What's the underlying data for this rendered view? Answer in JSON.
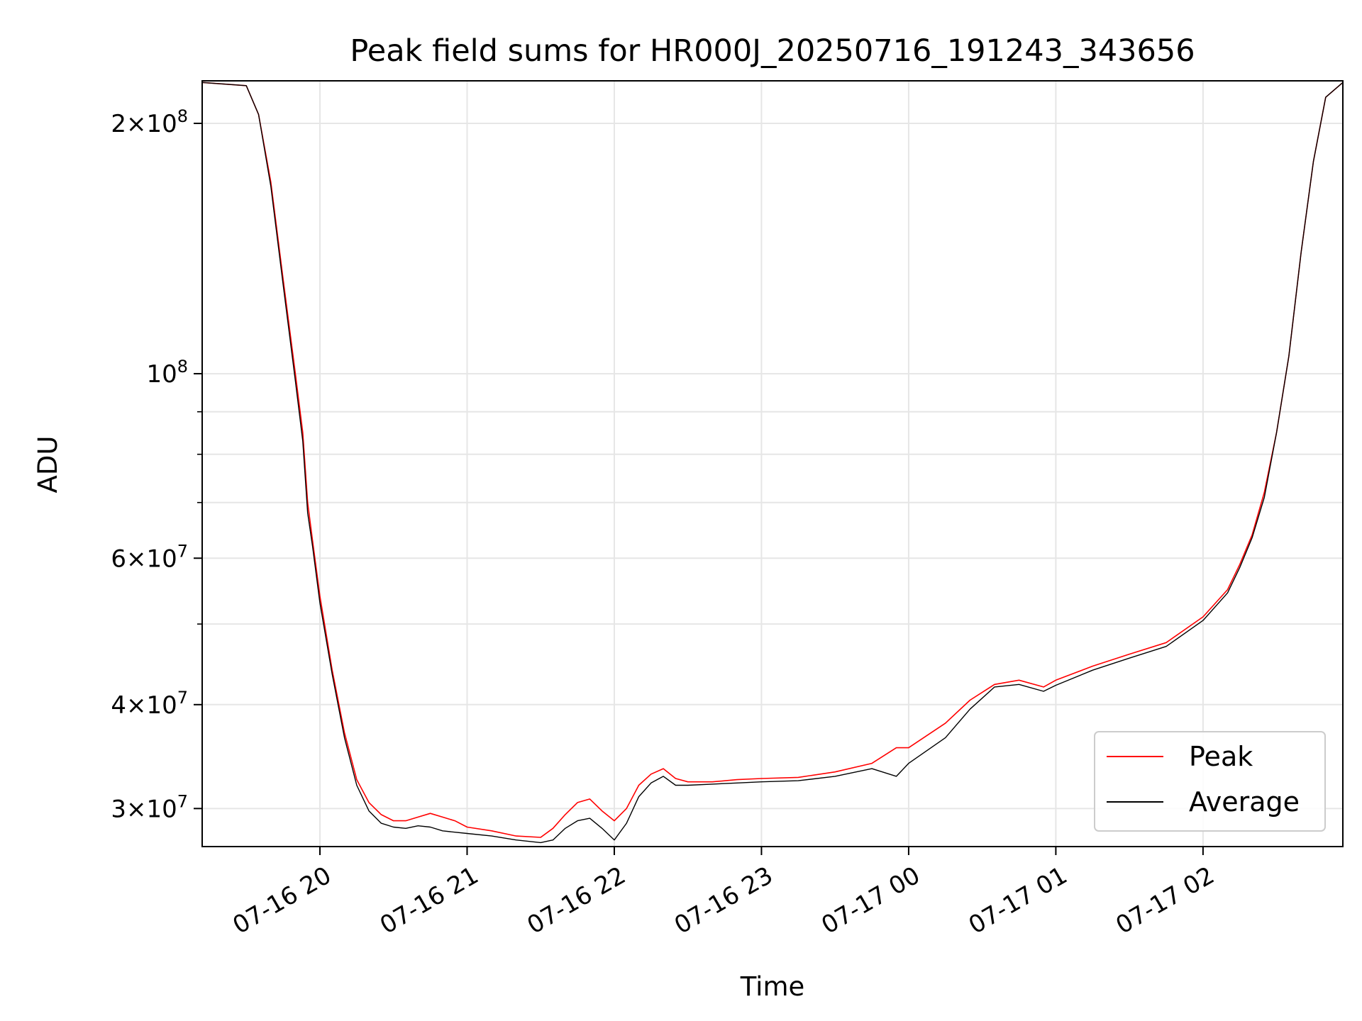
{
  "chart_data": {
    "type": "line",
    "title": "Peak field sums for HR000J_20250716_191243_343656",
    "xlabel": "Time",
    "ylabel": "ADU",
    "yscale": "log",
    "ylim": [
      27000000,
      225000000
    ],
    "xlim": [
      "2025-07-16 19:12",
      "2025-07-17 02:57"
    ],
    "grid": true,
    "legend_position": "lower-right",
    "x_ticks": [
      "2025-07-16 20:00",
      "2025-07-16 21:00",
      "2025-07-16 22:00",
      "2025-07-16 23:00",
      "2025-07-17 00:00",
      "2025-07-17 01:00",
      "2025-07-17 02:00"
    ],
    "x_tick_labels": [
      "07-16 20",
      "07-16 21",
      "07-16 22",
      "07-16 23",
      "07-17 00",
      "07-17 01",
      "07-17 02"
    ],
    "y_major_ticks": [
      {
        "value": 30000000,
        "mantissa": "3",
        "exp": "7"
      },
      {
        "value": 40000000,
        "mantissa": "4",
        "exp": "7"
      },
      {
        "value": 60000000,
        "mantissa": "6",
        "exp": "7"
      },
      {
        "value": 100000000,
        "mantissa": "",
        "exp": "8"
      },
      {
        "value": 200000000,
        "mantissa": "2",
        "exp": "8"
      }
    ],
    "y_minor_ticks": [
      50000000,
      70000000,
      80000000,
      90000000
    ],
    "series": [
      {
        "name": "Peak",
        "color": "#ff0000",
        "x": [
          "2025-07-16 19:12",
          "2025-07-16 19:30",
          "2025-07-16 19:35",
          "2025-07-16 19:40",
          "2025-07-16 19:45",
          "2025-07-16 19:50",
          "2025-07-16 19:53",
          "2025-07-16 19:55",
          "2025-07-16 19:57",
          "2025-07-16 20:00",
          "2025-07-16 20:05",
          "2025-07-16 20:10",
          "2025-07-16 20:15",
          "2025-07-16 20:20",
          "2025-07-16 20:25",
          "2025-07-16 20:30",
          "2025-07-16 20:35",
          "2025-07-16 20:40",
          "2025-07-16 20:45",
          "2025-07-16 20:50",
          "2025-07-16 20:55",
          "2025-07-16 21:00",
          "2025-07-16 21:10",
          "2025-07-16 21:20",
          "2025-07-16 21:30",
          "2025-07-16 21:35",
          "2025-07-16 21:40",
          "2025-07-16 21:45",
          "2025-07-16 21:50",
          "2025-07-16 21:55",
          "2025-07-16 22:00",
          "2025-07-16 22:05",
          "2025-07-16 22:10",
          "2025-07-16 22:15",
          "2025-07-16 22:20",
          "2025-07-16 22:25",
          "2025-07-16 22:30",
          "2025-07-16 22:40",
          "2025-07-16 22:50",
          "2025-07-16 23:00",
          "2025-07-16 23:15",
          "2025-07-16 23:30",
          "2025-07-16 23:45",
          "2025-07-16 23:55",
          "2025-07-17 00:00",
          "2025-07-17 00:15",
          "2025-07-17 00:25",
          "2025-07-17 00:35",
          "2025-07-17 00:45",
          "2025-07-17 00:55",
          "2025-07-17 01:00",
          "2025-07-17 01:15",
          "2025-07-17 01:30",
          "2025-07-17 01:45",
          "2025-07-17 02:00",
          "2025-07-17 02:10",
          "2025-07-17 02:15",
          "2025-07-17 02:20",
          "2025-07-17 02:25",
          "2025-07-17 02:30",
          "2025-07-17 02:35",
          "2025-07-17 02:40",
          "2025-07-17 02:45",
          "2025-07-17 02:50",
          "2025-07-17 02:57"
        ],
        "y": [
          224000000,
          222000000,
          205000000,
          170000000,
          130000000,
          100000000,
          85000000,
          70000000,
          63000000,
          54000000,
          44000000,
          37000000,
          32500000,
          30500000,
          29500000,
          29000000,
          29000000,
          29300000,
          29600000,
          29300000,
          29000000,
          28500000,
          28200000,
          27800000,
          27700000,
          28400000,
          29500000,
          30500000,
          30800000,
          29800000,
          29000000,
          30000000,
          32000000,
          33000000,
          33500000,
          32600000,
          32300000,
          32300000,
          32500000,
          32600000,
          32700000,
          33200000,
          34000000,
          35500000,
          35500000,
          38000000,
          40500000,
          42300000,
          42800000,
          42000000,
          42800000,
          44500000,
          46000000,
          47500000,
          51000000,
          55000000,
          59000000,
          64000000,
          72000000,
          85000000,
          105000000,
          140000000,
          180000000,
          215000000,
          224000000
        ]
      },
      {
        "name": "Average",
        "color": "#000000",
        "x": [
          "2025-07-16 19:12",
          "2025-07-16 19:30",
          "2025-07-16 19:35",
          "2025-07-16 19:40",
          "2025-07-16 19:45",
          "2025-07-16 19:50",
          "2025-07-16 19:53",
          "2025-07-16 19:55",
          "2025-07-16 19:57",
          "2025-07-16 20:00",
          "2025-07-16 20:05",
          "2025-07-16 20:10",
          "2025-07-16 20:15",
          "2025-07-16 20:20",
          "2025-07-16 20:25",
          "2025-07-16 20:30",
          "2025-07-16 20:35",
          "2025-07-16 20:40",
          "2025-07-16 20:45",
          "2025-07-16 20:50",
          "2025-07-16 20:55",
          "2025-07-16 21:00",
          "2025-07-16 21:10",
          "2025-07-16 21:20",
          "2025-07-16 21:30",
          "2025-07-16 21:35",
          "2025-07-16 21:40",
          "2025-07-16 21:45",
          "2025-07-16 21:50",
          "2025-07-16 21:55",
          "2025-07-16 22:00",
          "2025-07-16 22:05",
          "2025-07-16 22:10",
          "2025-07-16 22:15",
          "2025-07-16 22:20",
          "2025-07-16 22:25",
          "2025-07-16 22:30",
          "2025-07-16 22:40",
          "2025-07-16 22:50",
          "2025-07-16 23:00",
          "2025-07-16 23:15",
          "2025-07-16 23:30",
          "2025-07-16 23:45",
          "2025-07-16 23:55",
          "2025-07-17 00:00",
          "2025-07-17 00:15",
          "2025-07-17 00:25",
          "2025-07-17 00:35",
          "2025-07-17 00:45",
          "2025-07-17 00:55",
          "2025-07-17 01:00",
          "2025-07-17 01:15",
          "2025-07-17 01:30",
          "2025-07-17 01:45",
          "2025-07-17 02:00",
          "2025-07-17 02:10",
          "2025-07-17 02:15",
          "2025-07-17 02:20",
          "2025-07-17 02:25",
          "2025-07-17 02:30",
          "2025-07-17 02:35",
          "2025-07-17 02:40",
          "2025-07-17 02:45",
          "2025-07-17 02:50",
          "2025-07-17 02:57"
        ],
        "y": [
          224000000,
          222000000,
          205000000,
          168000000,
          128000000,
          98000000,
          83000000,
          68000000,
          62000000,
          53000000,
          43500000,
          36500000,
          32000000,
          29800000,
          28800000,
          28500000,
          28400000,
          28600000,
          28500000,
          28200000,
          28100000,
          28000000,
          27800000,
          27500000,
          27300000,
          27500000,
          28400000,
          29000000,
          29200000,
          28400000,
          27500000,
          28800000,
          31000000,
          32200000,
          32800000,
          32000000,
          32000000,
          32100000,
          32200000,
          32300000,
          32400000,
          32800000,
          33500000,
          32800000,
          34000000,
          36500000,
          39500000,
          42000000,
          42300000,
          41500000,
          42200000,
          44000000,
          45500000,
          47000000,
          50500000,
          54500000,
          58500000,
          63500000,
          71000000,
          85000000,
          105000000,
          140000000,
          180000000,
          215000000,
          224000000
        ]
      }
    ]
  }
}
